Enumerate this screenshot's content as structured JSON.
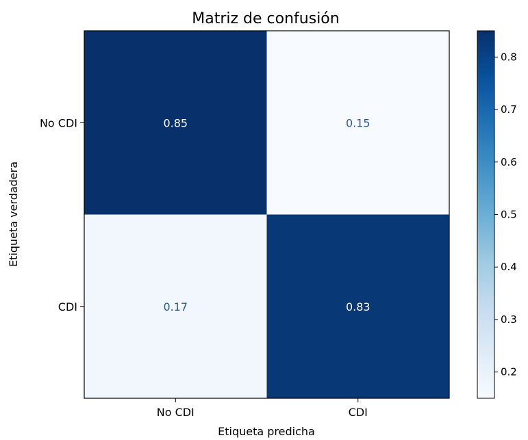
{
  "chart_data": {
    "type": "heatmap",
    "title": "Matriz de confusión",
    "xlabel": "Etiqueta predicha",
    "ylabel": "Etiqueta verdadera",
    "x_categories": [
      "No CDI",
      "CDI"
    ],
    "y_categories": [
      "No CDI",
      "CDI"
    ],
    "values": [
      [
        0.85,
        0.15
      ],
      [
        0.17,
        0.83
      ]
    ],
    "value_labels": [
      [
        "0.85",
        "0.15"
      ],
      [
        "0.17",
        "0.83"
      ]
    ],
    "colormap": "Blues",
    "colorbar": {
      "range": [
        0.15,
        0.85
      ],
      "ticks": [
        0.2,
        0.3,
        0.4,
        0.5,
        0.6,
        0.7,
        0.8
      ],
      "tick_labels": [
        "0.2",
        "0.3",
        "0.4",
        "0.5",
        "0.6",
        "0.7",
        "0.8"
      ]
    },
    "colors": {
      "dark_cell": "#08306b",
      "light_cell": "#f3f8fe",
      "dark_text": "#2a5a9a",
      "light_text": "#ffffff"
    }
  }
}
